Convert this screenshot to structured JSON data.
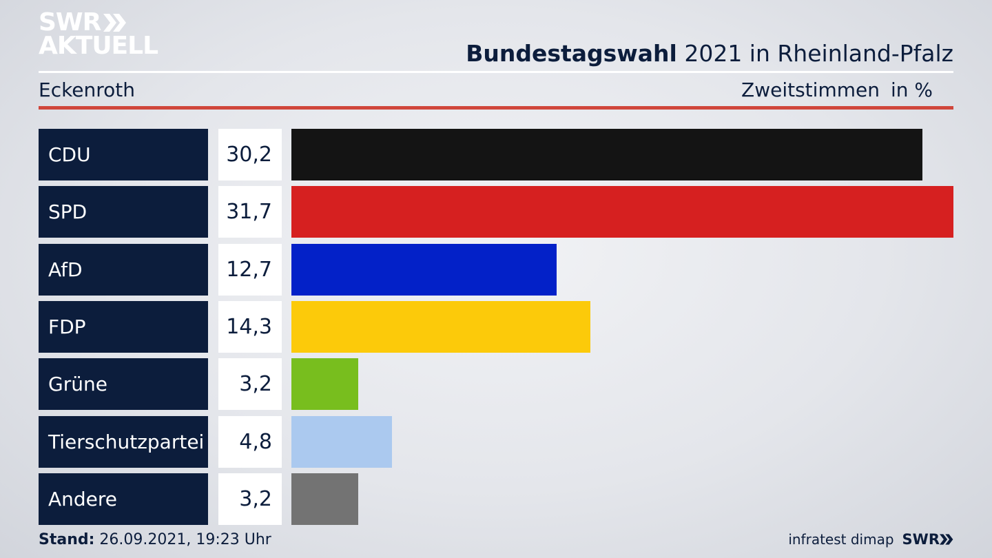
{
  "logo": {
    "line1": "SWR",
    "line2": "AKTUELL"
  },
  "header": {
    "title_bold": "Bundestagswahl",
    "title_rest": " 2021 in Rheinland-Pfalz",
    "region": "Eckenroth",
    "metric": "Zweitstimmen",
    "unit": "in %"
  },
  "chart_data": {
    "type": "bar",
    "orientation": "horizontal",
    "title": "Bundestagswahl 2021 in Rheinland-Pfalz",
    "subtitle": "Eckenroth",
    "xlabel": "Zweitstimmen in %",
    "categories": [
      "CDU",
      "SPD",
      "AfD",
      "FDP",
      "Grüne",
      "Tierschutzpartei",
      "Andere"
    ],
    "values": [
      30.2,
      31.7,
      12.7,
      14.3,
      3.2,
      4.8,
      3.2
    ],
    "value_labels": [
      "30,2",
      "31,7",
      "12,7",
      "14,3",
      "3,2",
      "4,8",
      "3,2"
    ],
    "colors": [
      "#141414",
      "#d62020",
      "#0321c8",
      "#fcca0a",
      "#78be1e",
      "#abc9ef",
      "#737373"
    ],
    "xlim": [
      0,
      31.7
    ],
    "grid": false
  },
  "footer": {
    "stand_label": "Stand:",
    "stand_value": " 26.09.2021, 19:23 Uhr",
    "source": "infratest dimap",
    "brand": "SWR"
  }
}
